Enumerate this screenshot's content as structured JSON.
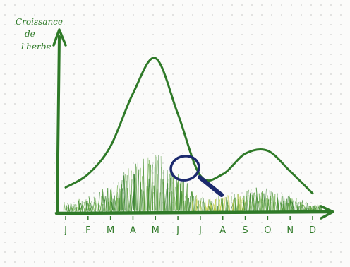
{
  "chart_data": {
    "type": "line",
    "title": "",
    "xlabel": "",
    "ylabel_lines": [
      "Croissance",
      "de",
      "l'herbe"
    ],
    "categories": [
      "J",
      "F",
      "M",
      "A",
      "M",
      "J",
      "J",
      "A",
      "S",
      "O",
      "N",
      "D"
    ],
    "series": [
      {
        "values": [
          0.08,
          0.17,
          0.36,
          0.72,
          0.96,
          0.58,
          0.16,
          0.17,
          0.31,
          0.33,
          0.19,
          0.04
        ]
      }
    ],
    "ylim": [
      0,
      1
    ],
    "grid": false,
    "legend": "none"
  },
  "colors": {
    "axis": "#2f7a28",
    "curve": "#2f7a28",
    "text": "#2f7a28",
    "grass": "#3e8a2e",
    "grass_dry": "#b8c63a",
    "magnifier_ring": "#1c2a6e",
    "magnifier_handle": "#1c2a6e"
  },
  "decorations": {
    "grass": "grass-strip-along-x-axis",
    "magnifier": "magnifier-glass-icon"
  }
}
